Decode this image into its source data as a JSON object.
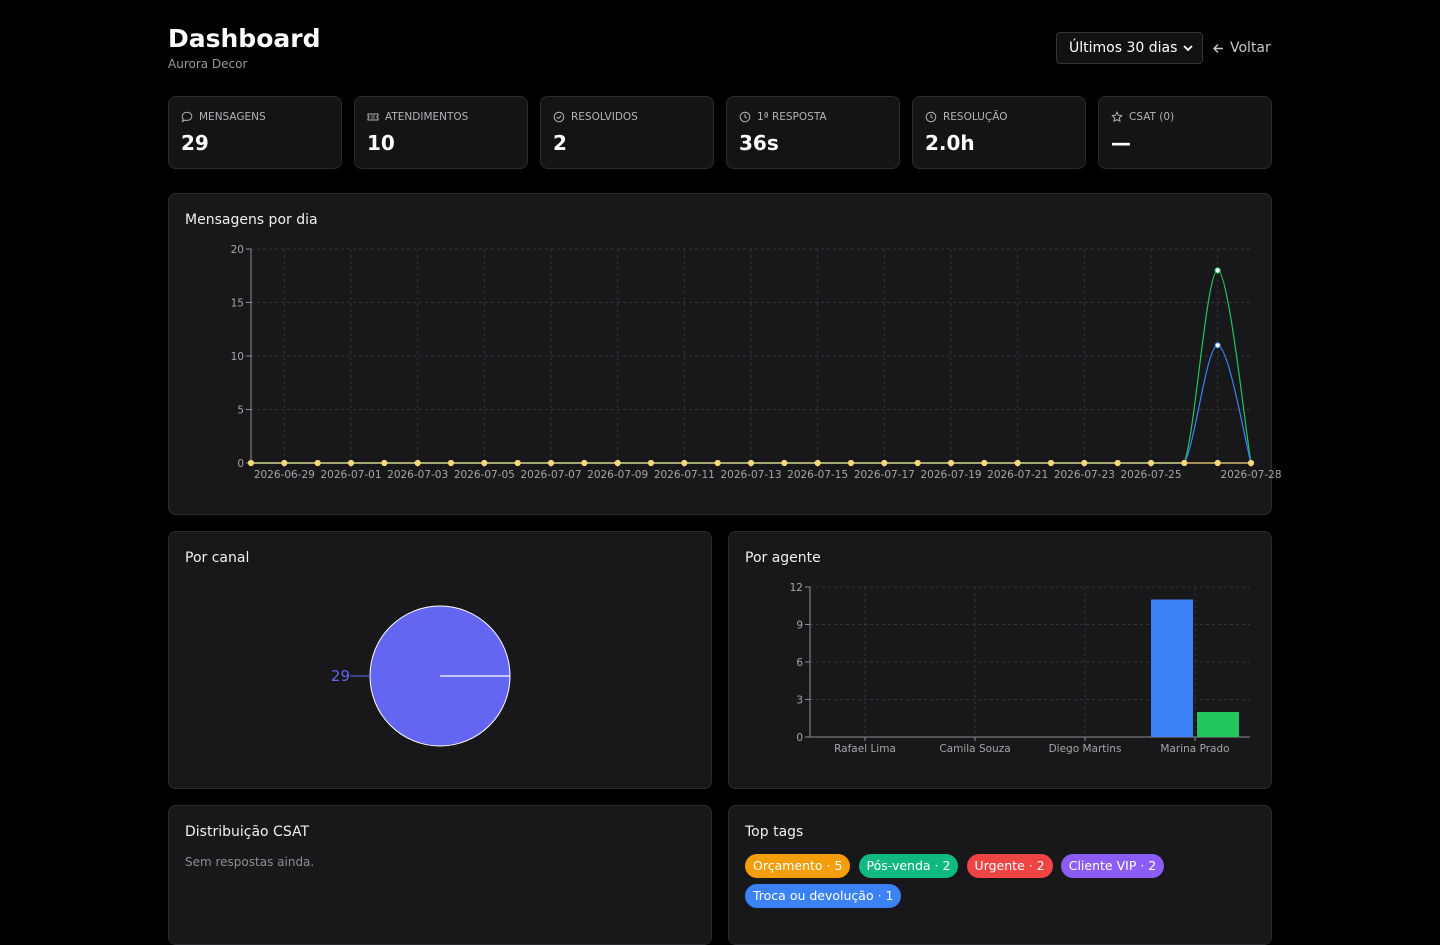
{
  "header": {
    "title": "Dashboard",
    "subtitle": "Aurora Decor",
    "period_selected": "Últimos 30 dias",
    "back_label": "Voltar"
  },
  "kpis": [
    {
      "label": "MENSAGENS",
      "value": "29",
      "icon": "chat-bubble-icon"
    },
    {
      "label": "ATENDIMENTOS",
      "value": "10",
      "icon": "ticket-icon"
    },
    {
      "label": "RESOLVIDOS",
      "value": "2",
      "icon": "check-circle-icon"
    },
    {
      "label": "1ª RESPOSTA",
      "value": "36s",
      "icon": "clock-icon"
    },
    {
      "label": "RESOLUÇÃO",
      "value": "2.0h",
      "icon": "clock-icon"
    },
    {
      "label": "CSAT (0)",
      "value": "—",
      "icon": "star-icon"
    }
  ],
  "cards": {
    "daily_title": "Mensagens por dia",
    "channel_title": "Por canal",
    "agent_title": "Por agente",
    "csat_title": "Distribuição CSAT",
    "csat_empty": "Sem respostas ainda.",
    "tags_title": "Top tags"
  },
  "tags": [
    {
      "label": "Orçamento · 5",
      "color": "#f59e0b"
    },
    {
      "label": "Pós-venda · 2",
      "color": "#10b981"
    },
    {
      "label": "Urgente · 2",
      "color": "#ef4444"
    },
    {
      "label": "Cliente VIP · 2",
      "color": "#8b5cf6"
    },
    {
      "label": "Troca ou devolução · 1",
      "color": "#3b82f6"
    }
  ],
  "chart_data": [
    {
      "type": "line",
      "title": "Mensagens por dia",
      "x": [
        "2026-06-28",
        "2026-06-29",
        "2026-06-30",
        "2026-07-01",
        "2026-07-02",
        "2026-07-03",
        "2026-07-04",
        "2026-07-05",
        "2026-07-06",
        "2026-07-07",
        "2026-07-08",
        "2026-07-09",
        "2026-07-10",
        "2026-07-11",
        "2026-07-12",
        "2026-07-13",
        "2026-07-14",
        "2026-07-15",
        "2026-07-16",
        "2026-07-17",
        "2026-07-18",
        "2026-07-19",
        "2026-07-20",
        "2026-07-21",
        "2026-07-22",
        "2026-07-23",
        "2026-07-24",
        "2026-07-25",
        "2026-07-26",
        "2026-07-27",
        "2026-07-28"
      ],
      "x_tick_labels": [
        "2026-06-29",
        "2026-07-01",
        "2026-07-03",
        "2026-07-05",
        "2026-07-07",
        "2026-07-09",
        "2026-07-11",
        "2026-07-13",
        "2026-07-15",
        "2026-07-17",
        "2026-07-19",
        "2026-07-21",
        "2026-07-23",
        "2026-07-25",
        "2026-07-28"
      ],
      "series": [
        {
          "color": "#22c55e",
          "values": [
            0,
            0,
            0,
            0,
            0,
            0,
            0,
            0,
            0,
            0,
            0,
            0,
            0,
            0,
            0,
            0,
            0,
            0,
            0,
            0,
            0,
            0,
            0,
            0,
            0,
            0,
            0,
            0,
            0,
            18,
            0
          ]
        },
        {
          "color": "#3b82f6",
          "values": [
            0,
            0,
            0,
            0,
            0,
            0,
            0,
            0,
            0,
            0,
            0,
            0,
            0,
            0,
            0,
            0,
            0,
            0,
            0,
            0,
            0,
            0,
            0,
            0,
            0,
            0,
            0,
            0,
            0,
            11,
            0
          ]
        },
        {
          "color": "#f5d87a",
          "values": [
            0,
            0,
            0,
            0,
            0,
            0,
            0,
            0,
            0,
            0,
            0,
            0,
            0,
            0,
            0,
            0,
            0,
            0,
            0,
            0,
            0,
            0,
            0,
            0,
            0,
            0,
            0,
            0,
            0,
            0,
            0
          ]
        }
      ],
      "yticks": [
        0,
        5,
        10,
        15,
        20
      ],
      "ylim": [
        0,
        20
      ],
      "grid": true
    },
    {
      "type": "pie",
      "title": "Por canal",
      "slices": [
        {
          "value": 29,
          "label": "29",
          "color": "#6366f1"
        }
      ]
    },
    {
      "type": "bar",
      "title": "Por agente",
      "categories": [
        "Rafael Lima",
        "Camila Souza",
        "Diego Martins",
        "Marina Prado"
      ],
      "series": [
        {
          "color": "#3b82f6",
          "values": [
            0,
            0,
            0,
            11
          ]
        },
        {
          "color": "#22c55e",
          "values": [
            0,
            0,
            0,
            2
          ]
        }
      ],
      "yticks": [
        0,
        3,
        6,
        9,
        12
      ],
      "ylim": [
        0,
        12
      ],
      "grid": true
    }
  ]
}
